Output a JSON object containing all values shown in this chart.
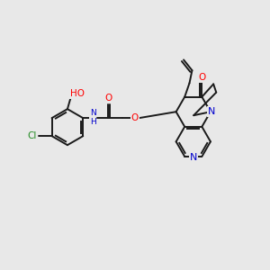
{
  "background_color": "#e8e8e8",
  "bond_color": "#1a1a1a",
  "atom_colors": {
    "O": "#ff0000",
    "N": "#0000cd",
    "Cl": "#228B22",
    "C": "#1a1a1a"
  },
  "figsize": [
    3.0,
    3.0
  ],
  "dpi": 100
}
